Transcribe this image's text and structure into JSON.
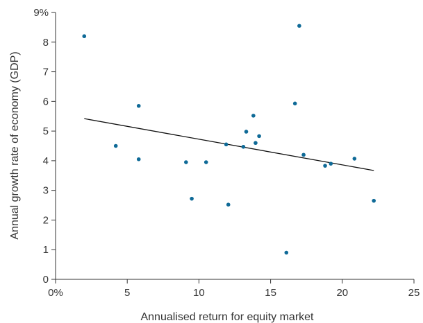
{
  "chart_data": {
    "type": "scatter",
    "xlabel": "Annualised return for equity market",
    "ylabel": "Annual growth rate of economy (GDP)",
    "xlim": [
      0,
      25
    ],
    "ylim": [
      0,
      9
    ],
    "x_ticks": [
      0,
      5,
      10,
      15,
      20,
      25
    ],
    "y_ticks": [
      0,
      1,
      2,
      3,
      4,
      5,
      6,
      7,
      8,
      9
    ],
    "x_tick_labels": [
      "0%",
      "5",
      "10",
      "15",
      "20",
      "25"
    ],
    "y_tick_labels": [
      "0",
      "1",
      "2",
      "3",
      "4",
      "5",
      "6",
      "7",
      "8",
      "9%"
    ],
    "grid": false,
    "points": [
      {
        "x": 2.0,
        "y": 8.2
      },
      {
        "x": 4.2,
        "y": 4.5
      },
      {
        "x": 5.8,
        "y": 5.85
      },
      {
        "x": 5.8,
        "y": 4.05
      },
      {
        "x": 9.1,
        "y": 3.95
      },
      {
        "x": 9.5,
        "y": 2.72
      },
      {
        "x": 10.5,
        "y": 3.95
      },
      {
        "x": 11.9,
        "y": 4.55
      },
      {
        "x": 12.05,
        "y": 2.52
      },
      {
        "x": 13.1,
        "y": 4.47
      },
      {
        "x": 13.3,
        "y": 4.98
      },
      {
        "x": 13.8,
        "y": 5.52
      },
      {
        "x": 13.95,
        "y": 4.6
      },
      {
        "x": 14.2,
        "y": 4.83
      },
      {
        "x": 16.1,
        "y": 0.9
      },
      {
        "x": 16.7,
        "y": 5.93
      },
      {
        "x": 17.0,
        "y": 8.55
      },
      {
        "x": 17.3,
        "y": 4.2
      },
      {
        "x": 18.8,
        "y": 3.83
      },
      {
        "x": 19.2,
        "y": 3.9
      },
      {
        "x": 20.85,
        "y": 4.07
      },
      {
        "x": 22.2,
        "y": 2.65
      }
    ],
    "trendline": {
      "x": [
        2.0,
        22.2
      ],
      "y": [
        5.42,
        3.67
      ]
    },
    "colors": {
      "points": "#0f6a97",
      "trendline": "#111111",
      "axis": "#333333",
      "text": "#333333"
    }
  }
}
